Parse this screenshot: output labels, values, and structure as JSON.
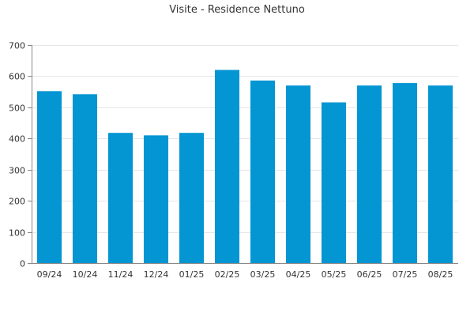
{
  "chart_data": {
    "type": "bar",
    "title": "Visite - Residence Nettuno",
    "xlabel": "",
    "ylabel": "",
    "categories": [
      "09/24",
      "10/24",
      "11/24",
      "12/24",
      "01/25",
      "02/25",
      "03/25",
      "04/25",
      "05/25",
      "06/25",
      "07/25",
      "08/25"
    ],
    "values": [
      552,
      542,
      418,
      410,
      418,
      620,
      586,
      570,
      516,
      570,
      578,
      570
    ],
    "ylim": [
      0,
      700
    ],
    "yticks": [
      0,
      100,
      200,
      300,
      400,
      500,
      600,
      700
    ],
    "ytick_labels": [
      "0",
      "100",
      "200",
      "300",
      "400",
      "500",
      "600",
      "700"
    ],
    "grid": true,
    "legend": "none",
    "bar_color": "#0495d3"
  }
}
